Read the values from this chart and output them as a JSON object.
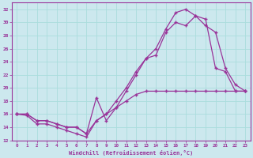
{
  "title": "",
  "xlabel": "Windchill (Refroidissement éolien,°C)",
  "ylabel": "",
  "xlim": [
    -0.5,
    23.5
  ],
  "ylim": [
    12,
    33
  ],
  "yticks": [
    12,
    14,
    16,
    18,
    20,
    22,
    24,
    26,
    28,
    30,
    32
  ],
  "xticks": [
    0,
    1,
    2,
    3,
    4,
    5,
    6,
    7,
    8,
    9,
    10,
    11,
    12,
    13,
    14,
    15,
    16,
    17,
    18,
    19,
    20,
    21,
    22,
    23
  ],
  "bg_color": "#cce8ee",
  "line_color": "#993399",
  "grid_color": "#aadddd",
  "line1_x": [
    0,
    1,
    2,
    3,
    4,
    5,
    6,
    7,
    8,
    9,
    10,
    11,
    12,
    13,
    14,
    15,
    16,
    17,
    18,
    19,
    20,
    21,
    22,
    23
  ],
  "line1_y": [
    16.0,
    15.8,
    14.5,
    14.5,
    14.0,
    13.5,
    13.0,
    12.5,
    15.0,
    16.0,
    17.0,
    18.0,
    19.0,
    19.5,
    19.5,
    19.5,
    19.5,
    19.5,
    19.5,
    19.5,
    19.5,
    19.5,
    19.5,
    19.5
  ],
  "line2_x": [
    0,
    1,
    2,
    3,
    4,
    5,
    6,
    7,
    8,
    9,
    10,
    11,
    12,
    13,
    14,
    15,
    16,
    17,
    18,
    19,
    20,
    21,
    22,
    23
  ],
  "line2_y": [
    16.0,
    16.0,
    15.0,
    15.0,
    14.5,
    14.0,
    14.0,
    13.0,
    18.5,
    15.0,
    17.0,
    19.5,
    22.0,
    24.5,
    25.0,
    28.5,
    30.0,
    29.5,
    31.0,
    30.5,
    23.0,
    22.5,
    19.5,
    19.5
  ],
  "line3_x": [
    0,
    1,
    2,
    3,
    4,
    5,
    6,
    7,
    8,
    9,
    10,
    11,
    12,
    13,
    14,
    15,
    16,
    17,
    18,
    19,
    20,
    21,
    22,
    23
  ],
  "line3_y": [
    16.0,
    16.0,
    15.0,
    15.0,
    14.5,
    14.0,
    14.0,
    13.0,
    15.0,
    16.0,
    18.0,
    20.0,
    22.5,
    24.5,
    26.0,
    29.0,
    31.5,
    32.0,
    31.0,
    29.5,
    28.5,
    23.0,
    20.5,
    19.5
  ]
}
